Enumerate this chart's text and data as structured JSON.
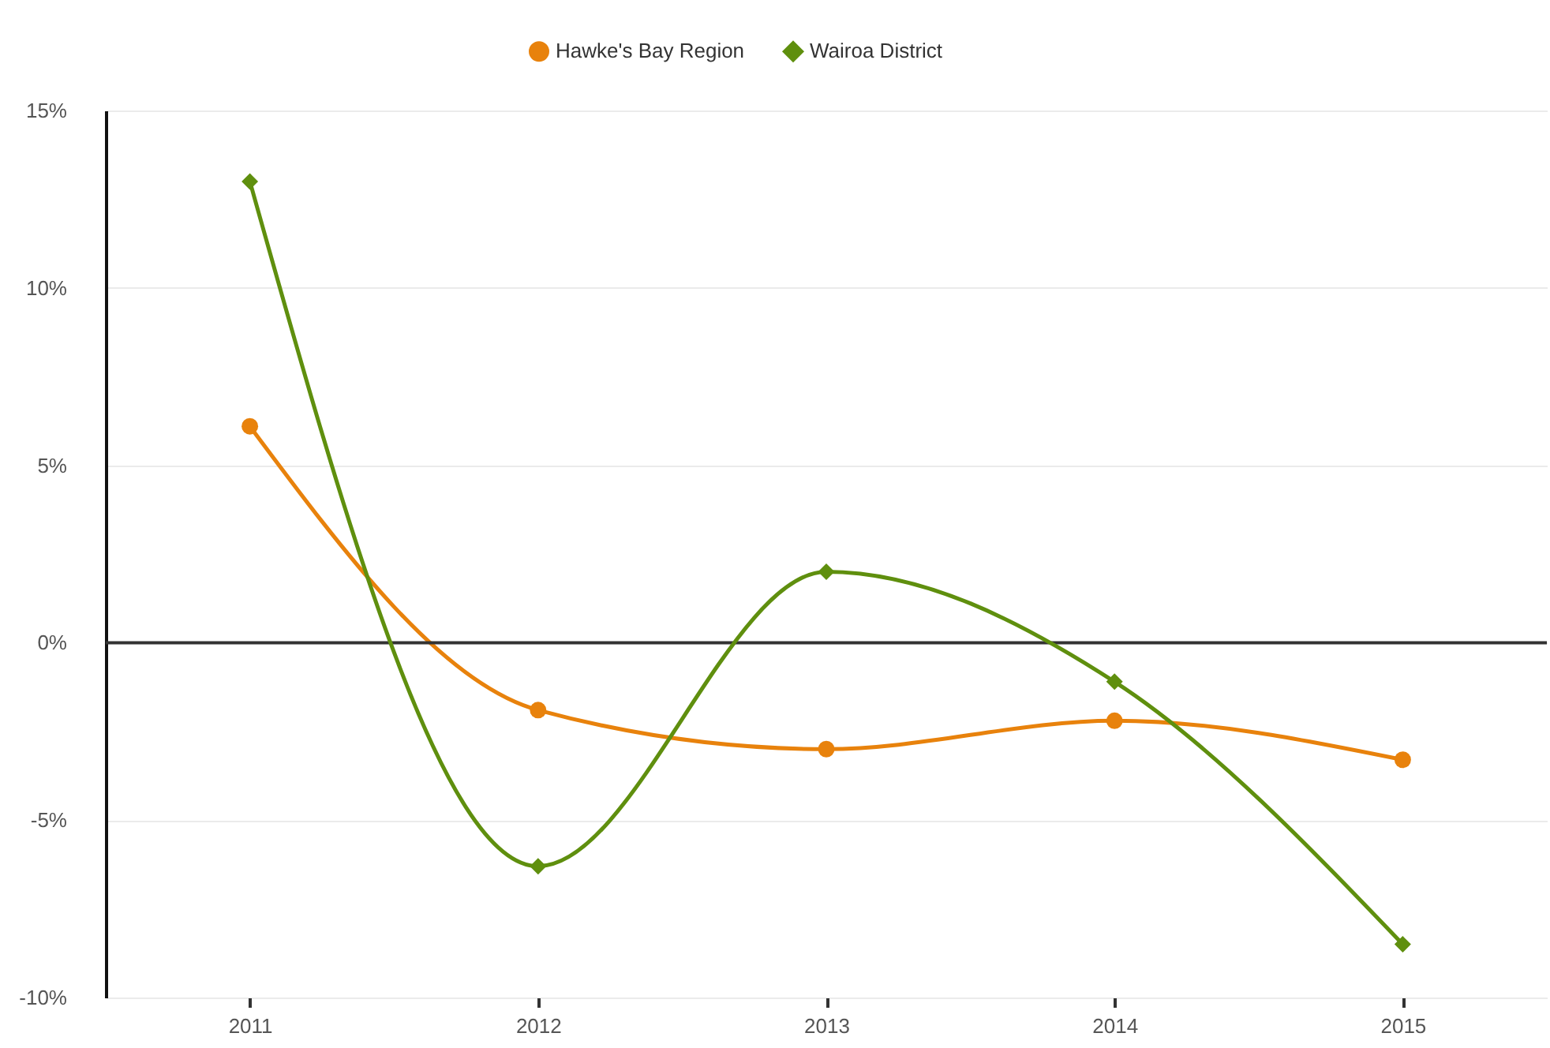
{
  "chart_data": {
    "type": "line",
    "categories": [
      "2011",
      "2012",
      "2013",
      "2014",
      "2015"
    ],
    "series": [
      {
        "name": "Hawke's Bay Region",
        "color": "#e8820c",
        "marker": "circle",
        "values": [
          6.1,
          -1.9,
          -3.0,
          -2.2,
          -3.3
        ]
      },
      {
        "name": "Wairoa District",
        "color": "#5f8f0e",
        "marker": "diamond",
        "values": [
          13.0,
          -6.3,
          2.0,
          -1.1,
          -8.5
        ]
      }
    ],
    "ylim": [
      -10,
      15
    ],
    "yticks": [
      {
        "value": -10,
        "label": "-10%"
      },
      {
        "value": -5,
        "label": "-5%"
      },
      {
        "value": 0,
        "label": "0%"
      },
      {
        "value": 5,
        "label": "5%"
      },
      {
        "value": 10,
        "label": "10%"
      },
      {
        "value": 15,
        "label": "15%"
      }
    ],
    "ref_lines": [
      {
        "axis": "y",
        "value": 0,
        "color": "#333333"
      }
    ],
    "grid": "y",
    "legend": "top",
    "line_style": "solid"
  }
}
